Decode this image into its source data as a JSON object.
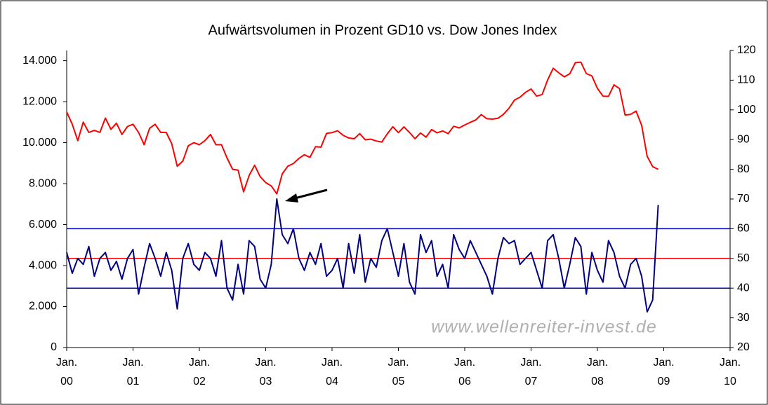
{
  "chart_data": {
    "type": "line",
    "title": "Aufwärtsvolumen in Prozent GD10 vs. Dow Jones Index",
    "watermark": "www.wellenreiter-invest.de",
    "x": [
      "2000-01",
      "2000-02",
      "2000-03",
      "2000-04",
      "2000-05",
      "2000-06",
      "2000-07",
      "2000-08",
      "2000-09",
      "2000-10",
      "2000-11",
      "2000-12",
      "2001-01",
      "2001-02",
      "2001-03",
      "2001-04",
      "2001-05",
      "2001-06",
      "2001-07",
      "2001-08",
      "2001-09",
      "2001-10",
      "2001-11",
      "2001-12",
      "2002-01",
      "2002-02",
      "2002-03",
      "2002-04",
      "2002-05",
      "2002-06",
      "2002-07",
      "2002-08",
      "2002-09",
      "2002-10",
      "2002-11",
      "2002-12",
      "2003-01",
      "2003-02",
      "2003-03",
      "2003-04",
      "2003-05",
      "2003-06",
      "2003-07",
      "2003-08",
      "2003-09",
      "2003-10",
      "2003-11",
      "2003-12",
      "2004-01",
      "2004-02",
      "2004-03",
      "2004-04",
      "2004-05",
      "2004-06",
      "2004-07",
      "2004-08",
      "2004-09",
      "2004-10",
      "2004-11",
      "2004-12",
      "2005-01",
      "2005-02",
      "2005-03",
      "2005-04",
      "2005-05",
      "2005-06",
      "2005-07",
      "2005-08",
      "2005-09",
      "2005-10",
      "2005-11",
      "2005-12",
      "2006-01",
      "2006-02",
      "2006-03",
      "2006-04",
      "2006-05",
      "2006-06",
      "2006-07",
      "2006-08",
      "2006-09",
      "2006-10",
      "2006-11",
      "2006-12",
      "2007-01",
      "2007-02",
      "2007-03",
      "2007-04",
      "2007-05",
      "2007-06",
      "2007-07",
      "2007-08",
      "2007-09",
      "2007-10",
      "2007-11",
      "2007-12",
      "2008-01",
      "2008-02",
      "2008-03",
      "2008-04",
      "2008-05",
      "2008-06",
      "2008-07",
      "2008-08",
      "2008-09",
      "2008-10",
      "2008-11",
      "2008-12"
    ],
    "series": [
      {
        "name": "Dow Jones Index",
        "color": "#ff0000",
        "axis": "y",
        "values": [
          11500,
          10900,
          10100,
          11000,
          10500,
          10600,
          10500,
          11200,
          10650,
          10950,
          10400,
          10790,
          10900,
          10500,
          9900,
          10700,
          10900,
          10500,
          10500,
          9950,
          8850,
          9100,
          9850,
          10000,
          9900,
          10100,
          10400,
          9900,
          9900,
          9250,
          8700,
          8660,
          7600,
          8400,
          8900,
          8340,
          8050,
          7890,
          7500,
          8480,
          8850,
          8980,
          9230,
          9410,
          9280,
          9800,
          9780,
          10450,
          10490,
          10580,
          10360,
          10230,
          10190,
          10440,
          10140,
          10170,
          10080,
          10030,
          10430,
          10780,
          10490,
          10770,
          10500,
          10190,
          10470,
          10270,
          10640,
          10480,
          10570,
          10440,
          10800,
          10720,
          10860,
          10990,
          11110,
          11370,
          11170,
          11150,
          11190,
          11380,
          11680,
          12080,
          12220,
          12460,
          12620,
          12270,
          12350,
          13060,
          13630,
          13410,
          13210,
          13360,
          13900,
          13930,
          13370,
          13260,
          12650,
          12270,
          12260,
          12820,
          12640,
          11350,
          11380,
          11540,
          10850,
          9330,
          8830,
          8700
        ]
      },
      {
        "name": "Aufwärtsvolumen in Prozent GD10",
        "color": "#000080",
        "axis": "y2",
        "values": [
          52,
          45,
          50,
          48,
          54,
          44,
          50,
          52,
          46,
          49,
          43,
          50,
          53,
          38,
          47,
          55,
          50,
          44,
          52,
          46,
          33,
          50,
          55,
          48,
          46,
          52,
          50,
          44,
          56,
          40,
          36,
          48,
          38,
          56,
          54,
          43,
          40,
          48,
          70,
          58,
          55,
          60,
          50,
          46,
          52,
          48,
          55,
          44,
          46,
          50,
          40,
          55,
          45,
          58,
          42,
          50,
          47,
          56,
          60,
          52,
          44,
          55,
          42,
          38,
          58,
          52,
          56,
          44,
          48,
          40,
          58,
          53,
          50,
          56,
          52,
          48,
          44,
          38,
          50,
          57,
          55,
          56,
          48,
          50,
          52,
          46,
          40,
          56,
          58,
          50,
          40,
          48,
          57,
          54,
          38,
          52,
          46,
          42,
          56,
          52,
          44,
          40,
          48,
          50,
          44,
          32,
          36,
          68
        ]
      }
    ],
    "reference_lines": [
      {
        "value": 60,
        "color": "#0000cc"
      },
      {
        "value": 50,
        "color": "#ff0000"
      },
      {
        "value": 40,
        "color": "#0000cc"
      }
    ],
    "xlim": [
      "2000-01",
      "2010-01"
    ],
    "xticks": [
      {
        "value": "2000-01",
        "label": "Jan. 00"
      },
      {
        "value": "2001-01",
        "label": "Jan. 01"
      },
      {
        "value": "2002-01",
        "label": "Jan. 02"
      },
      {
        "value": "2003-01",
        "label": "Jan. 03"
      },
      {
        "value": "2004-01",
        "label": "Jan. 04"
      },
      {
        "value": "2005-01",
        "label": "Jan. 05"
      },
      {
        "value": "2006-01",
        "label": "Jan. 06"
      },
      {
        "value": "2007-01",
        "label": "Jan. 07"
      },
      {
        "value": "2008-01",
        "label": "Jan. 08"
      },
      {
        "value": "2009-01",
        "label": "Jan. 09"
      },
      {
        "value": "2010-01",
        "label": "Jan. 10"
      }
    ],
    "ylim": [
      0,
      14500
    ],
    "yticks": [
      0,
      {
        "value": 2000,
        "label": "2.000"
      },
      {
        "value": 4000,
        "label": "4.000"
      },
      {
        "value": 6000,
        "label": "6.000"
      },
      {
        "value": 8000,
        "label": "8.000"
      },
      {
        "value": 10000,
        "label": "10.000"
      },
      {
        "value": 12000,
        "label": "12.000"
      },
      {
        "value": 14000,
        "label": "14.000"
      }
    ],
    "y2lim": [
      20,
      120
    ],
    "y2ticks": [
      20,
      30,
      40,
      50,
      60,
      70,
      80,
      90,
      100,
      110,
      120
    ],
    "grid": false
  }
}
